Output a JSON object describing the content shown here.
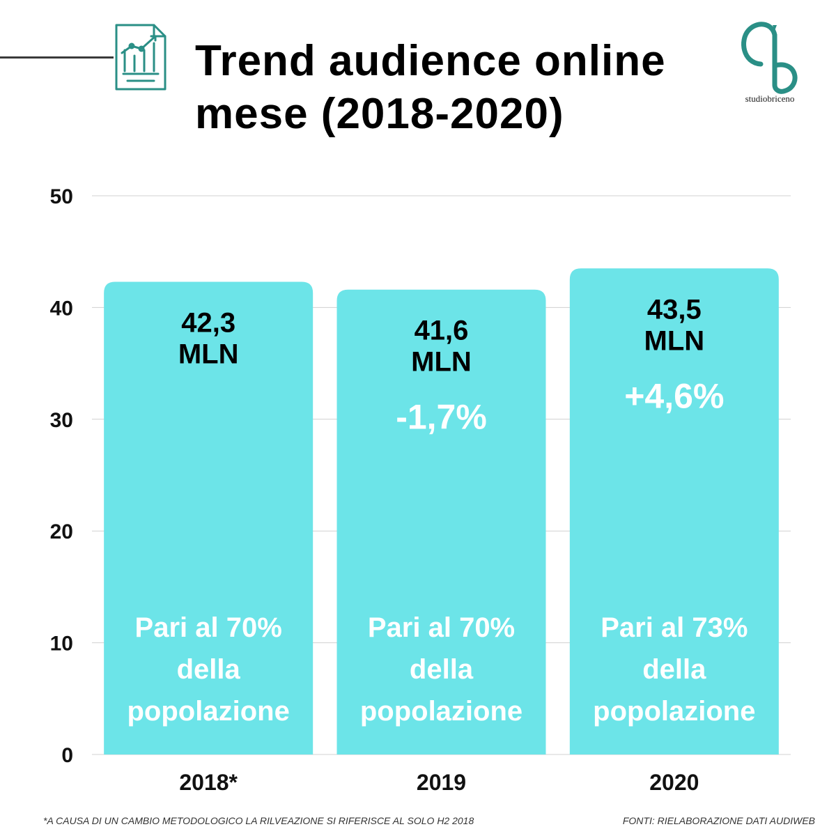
{
  "header": {
    "title_line1": "Trend audience online",
    "title_line2": "mese (2018-2020)"
  },
  "logo": {
    "text": "studiobriceno",
    "icon": "studiobriceno-logo"
  },
  "colors": {
    "bar": "#6ce4e8",
    "accent": "#2a8f86",
    "grid": "#d0d0d0",
    "dark_line": "#3a3a3a"
  },
  "chart_data": {
    "type": "bar",
    "categories": [
      "2018*",
      "2019",
      "2020"
    ],
    "values": [
      42.3,
      41.6,
      43.5
    ],
    "ylim": [
      0,
      50
    ],
    "yticks": [
      "0",
      "10",
      "20",
      "30",
      "40",
      "50"
    ],
    "grid": true,
    "value_labels": [
      [
        "42,3",
        "MLN"
      ],
      [
        "41,6",
        "MLN"
      ],
      [
        "43,5",
        "MLN"
      ]
    ],
    "change_labels": [
      "",
      "-1,7%",
      "+4,6%"
    ],
    "notes": [
      [
        "Pari al 70%",
        "della",
        "popolazione"
      ],
      [
        "Pari al 70%",
        "della",
        "popolazione"
      ],
      [
        "Pari al 73%",
        "della",
        "popolazione"
      ]
    ]
  },
  "footer": {
    "footnote": "*A CAUSA DI UN CAMBIO METODOLOGICO LA RILVEAZIONE SI RIFERISCE AL SOLO H2 2018",
    "source": "FONTI: RIELABORAZIONE DATI AUDIWEB"
  }
}
